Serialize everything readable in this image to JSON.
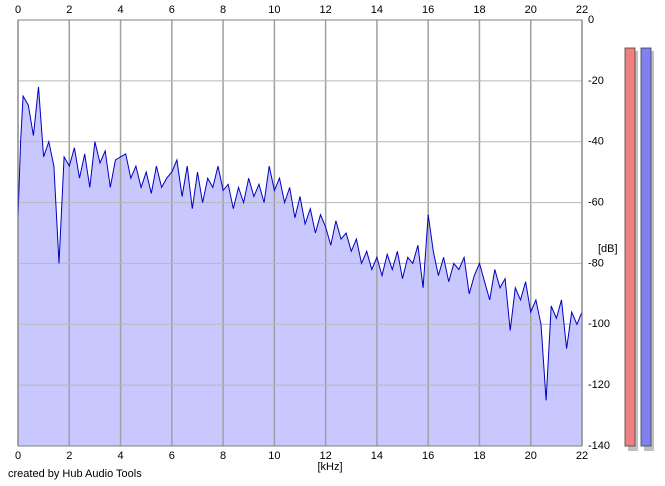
{
  "chart_data": {
    "type": "line",
    "xlabel": "[kHz]",
    "ylabel": "[dB]",
    "credit": "created by Hub Audio Tools",
    "color": "#0000c0",
    "fill_color": "#c8c8ff",
    "grid": true,
    "xlim": [
      0,
      22
    ],
    "xticks": [
      0,
      2,
      4,
      6,
      8,
      10,
      12,
      14,
      16,
      18,
      20,
      22
    ],
    "ylim": [
      -140,
      0
    ],
    "yticks": [
      0,
      -20,
      -40,
      -60,
      -80,
      -100,
      -120,
      -140
    ],
    "x": [
      0,
      0.1,
      0.2,
      0.4,
      0.6,
      0.8,
      1.0,
      1.2,
      1.4,
      1.6,
      1.8,
      2.0,
      2.2,
      2.4,
      2.6,
      2.8,
      3.0,
      3.2,
      3.4,
      3.6,
      3.8,
      4.0,
      4.2,
      4.4,
      4.6,
      4.8,
      5.0,
      5.2,
      5.4,
      5.6,
      5.8,
      6.0,
      6.2,
      6.4,
      6.6,
      6.8,
      7.0,
      7.2,
      7.4,
      7.6,
      7.8,
      8.0,
      8.2,
      8.4,
      8.6,
      8.8,
      9.0,
      9.2,
      9.4,
      9.6,
      9.8,
      10.0,
      10.2,
      10.4,
      10.6,
      10.8,
      11.0,
      11.2,
      11.4,
      11.6,
      11.8,
      12.0,
      12.2,
      12.4,
      12.6,
      12.8,
      13.0,
      13.2,
      13.4,
      13.6,
      13.8,
      14.0,
      14.2,
      14.4,
      14.6,
      14.8,
      15.0,
      15.2,
      15.4,
      15.6,
      15.8,
      16.0,
      16.2,
      16.4,
      16.6,
      16.8,
      17.0,
      17.2,
      17.4,
      17.6,
      17.8,
      18.0,
      18.2,
      18.4,
      18.6,
      18.8,
      19.0,
      19.2,
      19.4,
      19.6,
      19.8,
      20.0,
      20.2,
      20.4,
      20.6,
      20.8,
      21.0,
      21.2,
      21.4,
      21.6,
      21.8,
      22.0
    ],
    "values": [
      -65,
      -40,
      -25,
      -28,
      -38,
      -22,
      -45,
      -40,
      -48,
      -80,
      -45,
      -48,
      -42,
      -52,
      -44,
      -55,
      -40,
      -47,
      -43,
      -55,
      -46,
      -45,
      -44,
      -52,
      -48,
      -55,
      -50,
      -57,
      -48,
      -55,
      -52,
      -50,
      -46,
      -58,
      -48,
      -62,
      -50,
      -60,
      -52,
      -55,
      -48,
      -56,
      -54,
      -62,
      -55,
      -60,
      -52,
      -58,
      -54,
      -60,
      -48,
      -56,
      -52,
      -60,
      -55,
      -65,
      -58,
      -67,
      -62,
      -70,
      -64,
      -68,
      -74,
      -66,
      -72,
      -70,
      -76,
      -72,
      -80,
      -76,
      -82,
      -78,
      -84,
      -77,
      -82,
      -76,
      -85,
      -78,
      -80,
      -74,
      -88,
      -64,
      -76,
      -84,
      -78,
      -86,
      -80,
      -82,
      -78,
      -90,
      -84,
      -80,
      -86,
      -92,
      -82,
      -88,
      -85,
      -102,
      -88,
      -92,
      -86,
      -96,
      -92,
      -100,
      -125,
      -94,
      -98,
      -92,
      -108,
      -96,
      -100,
      -96
    ]
  }
}
